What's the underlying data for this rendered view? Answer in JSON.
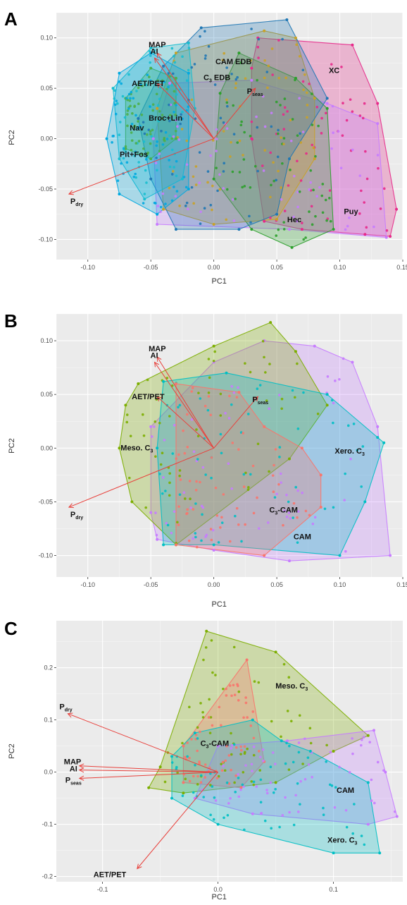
{
  "chart_data": [
    {
      "type": "scatter",
      "panel": "A",
      "xlabel": "PC1",
      "ylabel": "PC2",
      "xlim": [
        -0.125,
        0.15
      ],
      "ylim": [
        -0.12,
        0.125
      ],
      "xticks": [
        -0.1,
        -0.05,
        0.0,
        0.05,
        0.1,
        0.15
      ],
      "xtick_labels": [
        "-0.10",
        "-0.05",
        "0.00",
        "0.05",
        "0.10",
        "0.15"
      ],
      "yticks": [
        -0.1,
        -0.05,
        0.0,
        0.05,
        0.1
      ],
      "ytick_labels": [
        "-0.10",
        "-0.05",
        "0.00",
        "0.05",
        "0.10"
      ],
      "grid": true,
      "groups": [
        {
          "label": "XC",
          "label_at": [
            0.098,
            0.065
          ],
          "color": "#e7298a",
          "hull": [
            [
              0.035,
              0.1
            ],
            [
              0.11,
              0.093
            ],
            [
              0.13,
              0.035
            ],
            [
              0.145,
              -0.07
            ],
            [
              0.14,
              -0.097
            ],
            [
              0.12,
              -0.095
            ],
            [
              0.07,
              -0.09
            ],
            [
              0.04,
              -0.082
            ],
            [
              0.03,
              0.0
            ],
            [
              0.03,
              0.07
            ]
          ]
        },
        {
          "label": "Puy",
          "label_at": [
            0.11,
            -0.075
          ],
          "color": "#c77cff",
          "hull": [
            [
              -0.035,
              0.055
            ],
            [
              0.03,
              0.058
            ],
            [
              0.09,
              0.035
            ],
            [
              0.13,
              0.015
            ],
            [
              0.137,
              -0.098
            ],
            [
              0.06,
              -0.09
            ],
            [
              -0.045,
              -0.085
            ],
            [
              -0.048,
              0.0
            ]
          ]
        },
        {
          "label": "Hec",
          "label_at": [
            0.065,
            -0.083
          ],
          "color": "#2ca02c",
          "hull": [
            [
              0.02,
              0.085
            ],
            [
              0.065,
              0.06
            ],
            [
              0.09,
              0.03
            ],
            [
              0.095,
              -0.09
            ],
            [
              0.062,
              -0.108
            ],
            [
              0.03,
              -0.09
            ],
            [
              0.0,
              -0.04
            ],
            [
              0.005,
              0.045
            ]
          ]
        },
        {
          "label": "CAM EDB",
          "label_at": [
            0.008,
            0.074
          ],
          "color": "#c9a227",
          "hull": [
            [
              -0.03,
              0.085
            ],
            [
              0.04,
              0.107
            ],
            [
              0.065,
              0.1
            ],
            [
              0.08,
              0.04
            ],
            [
              0.08,
              -0.02
            ],
            [
              0.05,
              -0.08
            ],
            [
              0.0,
              -0.085
            ],
            [
              -0.04,
              -0.07
            ],
            [
              -0.045,
              0.03
            ]
          ]
        },
        {
          "label": "C3 EDB",
          "label_at": [
            0.003,
            0.058
          ],
          "color": "#1f77b4",
          "hull": [
            [
              -0.04,
              0.072
            ],
            [
              -0.01,
              0.11
            ],
            [
              0.058,
              0.118
            ],
            [
              0.09,
              0.04
            ],
            [
              0.06,
              -0.02
            ],
            [
              0.05,
              -0.075
            ],
            [
              0.02,
              -0.09
            ],
            [
              -0.03,
              -0.09
            ],
            [
              -0.05,
              -0.04
            ],
            [
              -0.06,
              0.02
            ]
          ]
        },
        {
          "label": "Broc+Lin",
          "label_at": [
            -0.045,
            0.018
          ],
          "color": "#17becf",
          "hull": [
            [
              -0.08,
              0.05
            ],
            [
              -0.05,
              0.09
            ],
            [
              -0.02,
              0.095
            ],
            [
              -0.015,
              0.03
            ],
            [
              -0.025,
              -0.04
            ],
            [
              -0.055,
              -0.06
            ],
            [
              -0.075,
              -0.02
            ]
          ]
        },
        {
          "label": "Nav",
          "label_at": [
            -0.06,
            0.008
          ],
          "color": "#4daf4a",
          "hull": [
            [
              -0.07,
              0.04
            ],
            [
              -0.05,
              0.07
            ],
            [
              -0.03,
              0.06
            ],
            [
              -0.03,
              0.0
            ],
            [
              -0.05,
              -0.02
            ],
            [
              -0.07,
              -0.01
            ]
          ]
        },
        {
          "label": "Pit+Fos",
          "label_at": [
            -0.068,
            -0.018
          ],
          "color": "#00a9e0",
          "hull": [
            [
              -0.085,
              0.0
            ],
            [
              -0.075,
              0.065
            ],
            [
              -0.05,
              0.085
            ],
            [
              -0.02,
              0.065
            ],
            [
              -0.02,
              -0.05
            ],
            [
              -0.045,
              -0.075
            ],
            [
              -0.075,
              -0.055
            ]
          ]
        }
      ],
      "vectors": [
        {
          "label": "MAP",
          "x": -0.045,
          "y": 0.085
        },
        {
          "label": "AI",
          "x": -0.047,
          "y": 0.08
        },
        {
          "label": "AET/PET",
          "x": -0.045,
          "y": 0.055
        },
        {
          "label": "P_seas",
          "x": 0.033,
          "y": 0.05
        },
        {
          "label": "P_dry",
          "x": -0.115,
          "y": -0.055
        }
      ],
      "vector_labels": {
        "MAP": "MAP",
        "AI": "AI",
        "AET/PET": "AET/PET",
        "P_seas": "P",
        "P_seas_sub": "seas",
        "P_dry": "P",
        "P_dry_sub": "dry"
      },
      "label_texts": {
        "XC": "XC",
        "Puy": "Puy",
        "Hec": "Hec",
        "CAM EDB": "CAM EDB",
        "C3 EDB_main": "C",
        "C3 EDB_sub": "3",
        "C3 EDB_rest": " EDB",
        "Broc+Lin": "Broc+Lin",
        "Nav": "Nav",
        "Pit+Fos": "Pit+Fos"
      }
    },
    {
      "type": "scatter",
      "panel": "B",
      "xlabel": "PC1",
      "ylabel": "PC2",
      "xlim": [
        -0.125,
        0.15
      ],
      "ylim": [
        -0.12,
        0.125
      ],
      "xticks": [
        -0.1,
        -0.05,
        0.0,
        0.05,
        0.1,
        0.15
      ],
      "xtick_labels": [
        "-0.10",
        "-0.05",
        "0.00",
        "0.05",
        "0.10",
        "0.15"
      ],
      "yticks": [
        -0.1,
        -0.05,
        0.0,
        0.05,
        0.1
      ],
      "ytick_labels": [
        "-0.10",
        "-0.05",
        "0.00",
        "0.05",
        "0.10"
      ],
      "grid": true,
      "groups": [
        {
          "label": "CAM",
          "label_at": [
            0.07,
            -0.085
          ],
          "color": "#c77cff",
          "hull": [
            [
              0.04,
              0.1
            ],
            [
              0.08,
              0.095
            ],
            [
              0.11,
              0.08
            ],
            [
              0.13,
              0.02
            ],
            [
              0.14,
              -0.1
            ],
            [
              0.06,
              -0.105
            ],
            [
              0.0,
              -0.095
            ],
            [
              -0.045,
              -0.085
            ],
            [
              -0.05,
              -0.06
            ],
            [
              -0.05,
              0.02
            ],
            [
              0.0,
              0.08
            ]
          ]
        },
        {
          "label": "Meso. C3",
          "label_at": [
            -0.06,
            -0.002
          ],
          "color": "#7cae00",
          "hull": [
            [
              -0.06,
              0.06
            ],
            [
              0.0,
              0.095
            ],
            [
              0.045,
              0.117
            ],
            [
              0.065,
              0.09
            ],
            [
              0.09,
              0.04
            ],
            [
              0.06,
              -0.01
            ],
            [
              -0.03,
              -0.09
            ],
            [
              -0.065,
              -0.05
            ],
            [
              -0.075,
              0.0
            ],
            [
              -0.07,
              0.04
            ]
          ]
        },
        {
          "label": "Xero. C3",
          "label_at": [
            0.11,
            -0.005
          ],
          "color": "#00bfc4",
          "hull": [
            [
              -0.04,
              0.062
            ],
            [
              0.01,
              0.07
            ],
            [
              0.09,
              0.05
            ],
            [
              0.13,
              0.01
            ],
            [
              0.135,
              0.005
            ],
            [
              0.12,
              -0.05
            ],
            [
              0.1,
              -0.1
            ],
            [
              0.0,
              -0.09
            ],
            [
              -0.04,
              -0.09
            ],
            [
              -0.045,
              0.0
            ]
          ]
        },
        {
          "label": "C3-CAM",
          "label_at": [
            0.058,
            -0.06
          ],
          "color": "#f8766d",
          "hull": [
            [
              -0.03,
              0.06
            ],
            [
              0.02,
              0.052
            ],
            [
              0.04,
              0.02
            ],
            [
              0.07,
              0.0
            ],
            [
              0.085,
              -0.025
            ],
            [
              0.085,
              -0.055
            ],
            [
              0.04,
              -0.1
            ],
            [
              -0.03,
              -0.09
            ]
          ]
        }
      ],
      "vectors": [
        {
          "label": "MAP",
          "x": -0.045,
          "y": 0.085
        },
        {
          "label": "AI",
          "x": -0.047,
          "y": 0.08
        },
        {
          "label": "AET/PET",
          "x": -0.045,
          "y": 0.048
        },
        {
          "label": "P_seas",
          "x": 0.035,
          "y": 0.048
        },
        {
          "label": "P_dry",
          "x": -0.115,
          "y": -0.055
        }
      ],
      "vector_labels": {
        "MAP": "MAP",
        "AI": "AI",
        "AET/PET": "AET/PET",
        "P_seas": "P",
        "P_seas_sub": "seas",
        "P_dry": "P",
        "P_dry_sub": "dry"
      },
      "label_texts": {
        "CAM": "CAM",
        "Meso": "Meso. C",
        "Meso_sub": "3",
        "Xero": "Xero. C",
        "Xero_sub": "3",
        "C3CAM_main": "C",
        "C3CAM_sub": "3",
        "C3CAM_rest": "-CAM"
      }
    },
    {
      "type": "scatter",
      "panel": "C",
      "xlabel": "PC1",
      "ylabel": "PC2",
      "xlim": [
        -0.14,
        0.16
      ],
      "ylim": [
        -0.21,
        0.29
      ],
      "xticks": [
        -0.1,
        0.0,
        0.1
      ],
      "xtick_labels": [
        "-0.1",
        "0.0",
        "0.1"
      ],
      "yticks": [
        -0.2,
        -0.1,
        0.0,
        0.1,
        0.2
      ],
      "ytick_labels": [
        "-0.2",
        "-0.1",
        "0.0",
        "0.1",
        "0.2"
      ],
      "grid": true,
      "groups": [
        {
          "label": "Meso. C3",
          "label_at": [
            0.065,
            0.16
          ],
          "color": "#7cae00",
          "hull": [
            [
              -0.05,
              0.01
            ],
            [
              -0.01,
              0.27
            ],
            [
              0.05,
              0.23
            ],
            [
              0.13,
              0.07
            ],
            [
              0.1,
              0.04
            ],
            [
              0.05,
              -0.02
            ],
            [
              -0.03,
              -0.04
            ],
            [
              -0.06,
              -0.03
            ]
          ]
        },
        {
          "label": "C3-CAM",
          "label_at": [
            0.0,
            0.05
          ],
          "color": "#f8766d",
          "hull": [
            [
              -0.03,
              0.05
            ],
            [
              0.025,
              0.215
            ],
            [
              0.04,
              0.02
            ],
            [
              0.02,
              -0.03
            ],
            [
              -0.03,
              -0.02
            ]
          ]
        },
        {
          "label": "CAM",
          "label_at": [
            0.11,
            -0.04
          ],
          "color": "#c77cff",
          "hull": [
            [
              0.0,
              0.05
            ],
            [
              0.06,
              0.06
            ],
            [
              0.135,
              0.08
            ],
            [
              0.145,
              0.0
            ],
            [
              0.155,
              -0.085
            ],
            [
              0.13,
              -0.1
            ],
            [
              0.03,
              -0.08
            ],
            [
              -0.02,
              -0.05
            ]
          ]
        },
        {
          "label": "Xero. C3",
          "label_at": [
            0.11,
            -0.135
          ],
          "color": "#00bfc4",
          "hull": [
            [
              -0.02,
              0.075
            ],
            [
              0.03,
              0.1
            ],
            [
              0.055,
              0.06
            ],
            [
              0.08,
              0.04
            ],
            [
              0.13,
              -0.02
            ],
            [
              0.14,
              -0.155
            ],
            [
              0.1,
              -0.155
            ],
            [
              0.0,
              -0.1
            ],
            [
              -0.04,
              -0.05
            ],
            [
              -0.04,
              0.03
            ]
          ]
        }
      ],
      "vectors": [
        {
          "label": "P_dry",
          "x": -0.13,
          "y": 0.112
        },
        {
          "label": "MAP",
          "x": -0.12,
          "y": 0.012
        },
        {
          "label": "AI",
          "x": -0.12,
          "y": 0.004
        },
        {
          "label": "P_seas",
          "x": -0.12,
          "y": -0.012
        },
        {
          "label": "AET/PET",
          "x": -0.07,
          "y": -0.185
        }
      ],
      "vector_labels": {
        "MAP": "MAP",
        "AI": "AI",
        "AET/PET": "AET/PET",
        "P_seas": "P",
        "P_seas_sub": "seas",
        "P_dry": "P",
        "P_dry_sub": "dry"
      },
      "label_texts": {
        "CAM": "CAM",
        "Meso": "Meso. C",
        "Meso_sub": "3",
        "Xero": "Xero. C",
        "Xero_sub": "3",
        "C3CAM_main": "C",
        "C3CAM_sub": "3",
        "C3CAM_rest": "-CAM"
      }
    }
  ],
  "panels": {
    "A": "A",
    "B": "B",
    "C": "C"
  },
  "colors": {
    "panel_bg": "#ebebeb",
    "grid": "#ffffff",
    "vector": "#e8413c"
  }
}
